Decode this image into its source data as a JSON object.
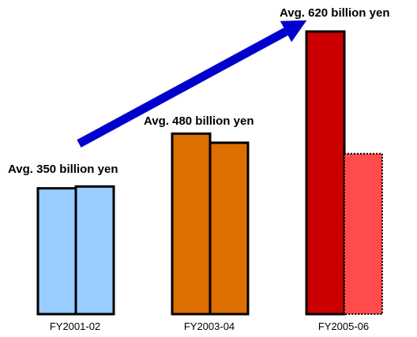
{
  "chart_data": {
    "type": "bar",
    "title": "",
    "xlabel": "",
    "ylabel": "",
    "ylim": [
      0,
      750
    ],
    "grid": false,
    "categories": [
      "FY2001-02",
      "FY2003-04",
      "FY2005-06"
    ],
    "groups": [
      {
        "category": "FY2001-02",
        "average_label": "Avg. 350 billion yen",
        "average": 350,
        "bars": [
          {
            "value": 345,
            "color": "#99ccff",
            "style": "solid"
          },
          {
            "value": 350,
            "color": "#99ccff",
            "style": "solid"
          }
        ]
      },
      {
        "category": "FY2003-04",
        "average_label": "Avg. 480 billion yen",
        "average": 480,
        "bars": [
          {
            "value": 495,
            "color": "#dd6e00",
            "style": "solid"
          },
          {
            "value": 470,
            "color": "#dd6e00",
            "style": "solid"
          }
        ]
      },
      {
        "category": "FY2005-06",
        "average_label": "Avg. 620 billion yen",
        "average": 620,
        "bars": [
          {
            "value": 775,
            "color": "#cc0000",
            "style": "solid"
          },
          {
            "value": 440,
            "color": "#ff4b4b",
            "style": "dotted"
          }
        ]
      }
    ],
    "trend_arrow": {
      "color": "#0000cc",
      "from": "FY2001-02",
      "to": "FY2005-06"
    }
  }
}
